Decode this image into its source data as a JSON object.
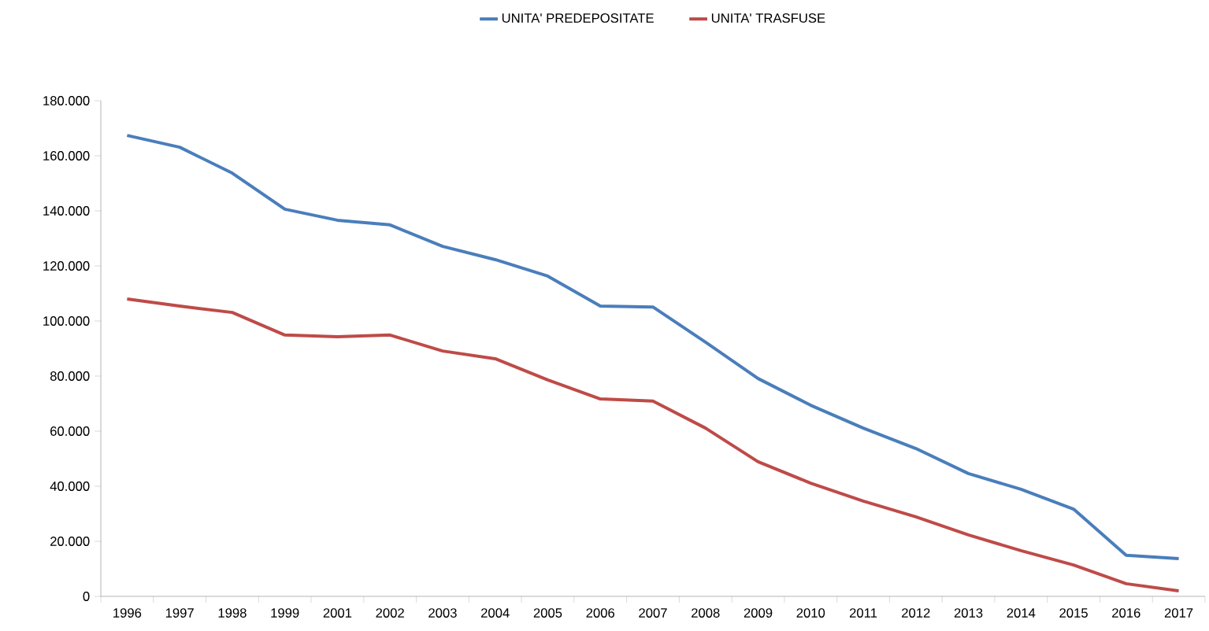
{
  "chart_data": {
    "type": "line",
    "categories": [
      "1996",
      "1997",
      "1998",
      "1999",
      "2001",
      "2002",
      "2003",
      "2004",
      "2005",
      "2006",
      "2007",
      "2008",
      "2009",
      "2010",
      "2011",
      "2012",
      "2013",
      "2014",
      "2015",
      "2016",
      "2017"
    ],
    "series": [
      {
        "name": "UNITA' PREDEPOSITATE",
        "color": "#4a7ebb",
        "values": [
          167400,
          163100,
          153700,
          140600,
          136600,
          134900,
          127100,
          122300,
          116300,
          105400,
          105100,
          92300,
          79100,
          69400,
          61100,
          53700,
          44600,
          38900,
          31700,
          14900,
          13700
        ]
      },
      {
        "name": "UNITA' TRASFUSE",
        "color": "#be4b48",
        "values": [
          108000,
          105400,
          103100,
          94900,
          94300,
          94900,
          89100,
          86300,
          78600,
          71700,
          70900,
          61100,
          48900,
          41100,
          34600,
          28900,
          22300,
          16600,
          11400,
          4600,
          2000
        ]
      }
    ],
    "ylim": [
      0,
      180000
    ],
    "yticks": [
      {
        "value": 0,
        "label": "0"
      },
      {
        "value": 20000,
        "label": "20.000"
      },
      {
        "value": 40000,
        "label": "40.000"
      },
      {
        "value": 60000,
        "label": "60.000"
      },
      {
        "value": 80000,
        "label": "80.000"
      },
      {
        "value": 100000,
        "label": "100.000"
      },
      {
        "value": 120000,
        "label": "120.000"
      },
      {
        "value": 140000,
        "label": "140.000"
      },
      {
        "value": 160000,
        "label": "160.000"
      },
      {
        "value": 180000,
        "label": "180.000"
      }
    ],
    "legend": "top"
  }
}
